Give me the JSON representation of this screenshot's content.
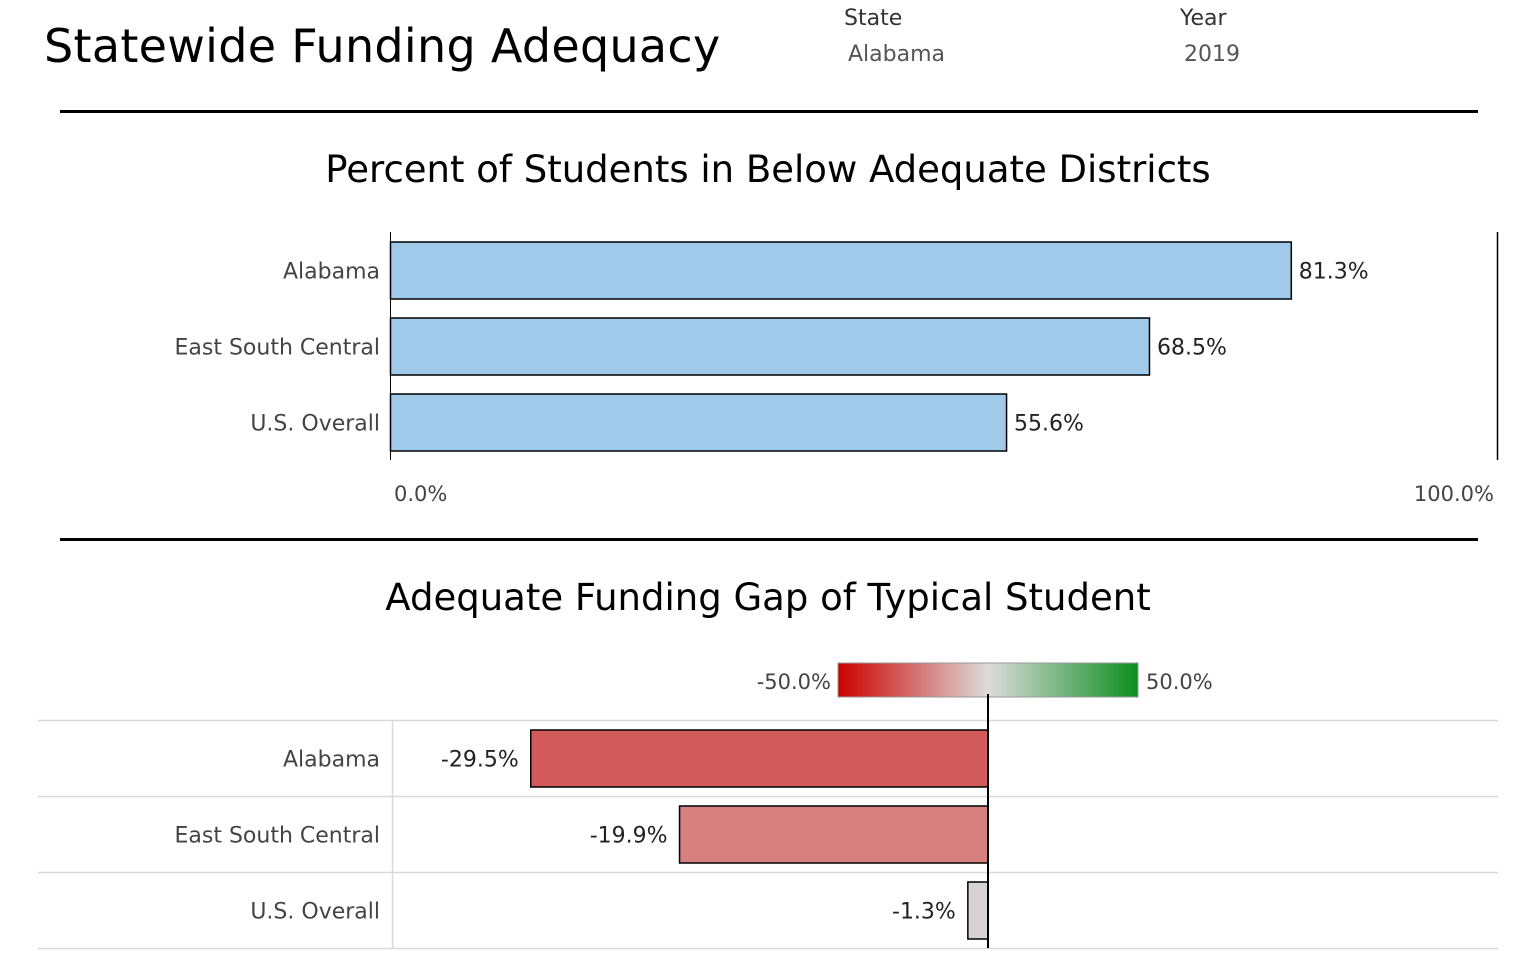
{
  "header": {
    "title": "Statewide Funding Adequacy",
    "filters": [
      {
        "label": "State",
        "value": "Alabama"
      },
      {
        "label": "Year",
        "value": "2019"
      }
    ]
  },
  "colors": {
    "bar_blue": "#a1c9ea",
    "gap_alabama": "#d35a5a",
    "gap_region": "#d68080",
    "gap_us": "#d8d3d3",
    "legend_low": "#cc0000",
    "legend_mid": "#dcdcdc",
    "legend_high": "#0a8f1f"
  },
  "chart_data": [
    {
      "type": "bar",
      "orientation": "horizontal",
      "title": "Percent of Students in Below Adequate Districts",
      "categories": [
        "Alabama",
        "East South Central",
        "U.S. Overall"
      ],
      "values": [
        81.3,
        68.5,
        55.6
      ],
      "value_labels": [
        "81.3%",
        "68.5%",
        "55.6%"
      ],
      "xlim": [
        0,
        100
      ],
      "tick_labels": [
        "0.0%",
        "100.0%"
      ]
    },
    {
      "type": "bar",
      "orientation": "horizontal",
      "title": "Adequate Funding Gap of Typical Student",
      "categories": [
        "Alabama",
        "East South Central",
        "U.S. Overall"
      ],
      "values": [
        -29.5,
        -19.9,
        -1.3
      ],
      "value_labels": [
        "-29.5%",
        "-19.9%",
        "-1.3%"
      ],
      "xlim": [
        -50,
        50
      ],
      "legend": {
        "type": "diverging-gradient",
        "min_label": "-50.0%",
        "max_label": "50.0%",
        "placement": "top"
      }
    }
  ]
}
